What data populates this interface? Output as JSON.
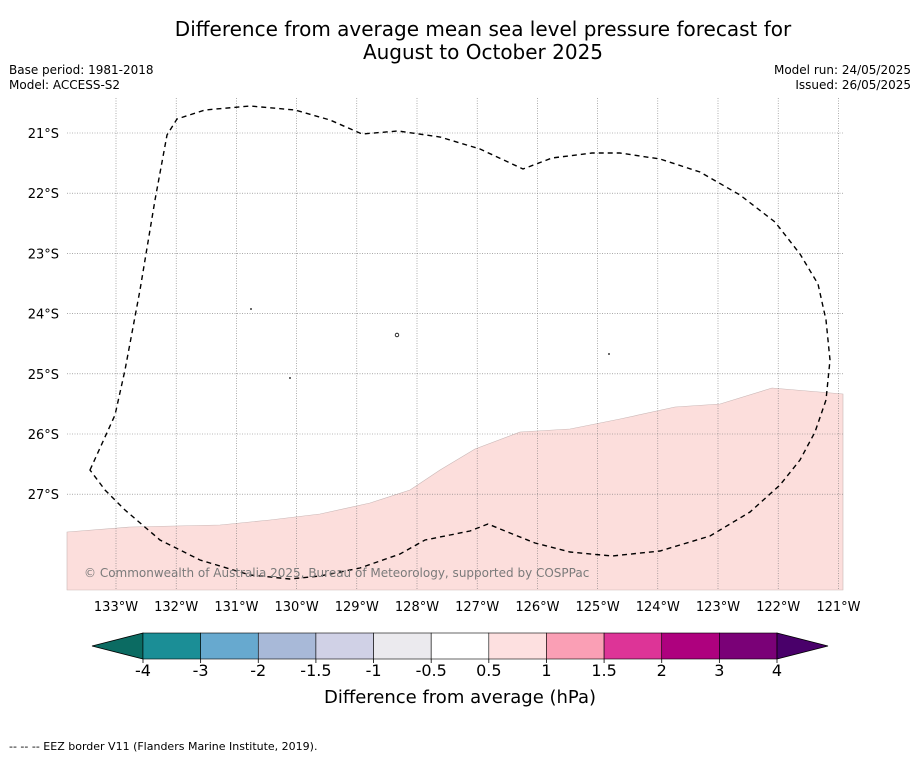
{
  "title_line1": "Difference from average mean sea level pressure forecast for",
  "title_line2": "August to October 2025",
  "meta_left": [
    "Base period: 1981-2018",
    "Model: ACCESS-S2"
  ],
  "meta_right": [
    "Model run: 24/05/2025",
    "Issued: 26/05/2025"
  ],
  "map": {
    "lat_labels": [
      "21°S",
      "22°S",
      "23°S",
      "24°S",
      "25°S",
      "26°S",
      "27°S"
    ],
    "lon_labels": [
      "133°W",
      "132°W",
      "131°W",
      "130°W",
      "129°W",
      "128°W",
      "127°W",
      "126°W",
      "125°W",
      "124°W",
      "123°W",
      "122°W",
      "121°W"
    ],
    "anomaly_color": "#fcdedc",
    "anomaly_region": "0.5 to 1 hPa, southern part of the domain",
    "copyright": "© Commonwealth of Australia 2025, Bureau of Meteorology, supported by COSPPac"
  },
  "colorbar": {
    "colors": [
      "#0b6b62",
      "#1b8e96",
      "#67a9cf",
      "#a8b9d8",
      "#d0d1e6",
      "#ebeaee",
      "#ffffff",
      "#fde0e0",
      "#fa9fb5",
      "#dd3497",
      "#ae017e",
      "#7a0177",
      "#49006a"
    ],
    "tick_labels": [
      "-4",
      "-3",
      "-2",
      "-1.5",
      "-1",
      "-0.5",
      "0.5",
      "1",
      "1.5",
      "2",
      "3",
      "4"
    ],
    "label": "Difference from average (hPa)"
  },
  "footer": "--  --  -- EEZ border V11 (Flanders Marine Institute, 2019)."
}
